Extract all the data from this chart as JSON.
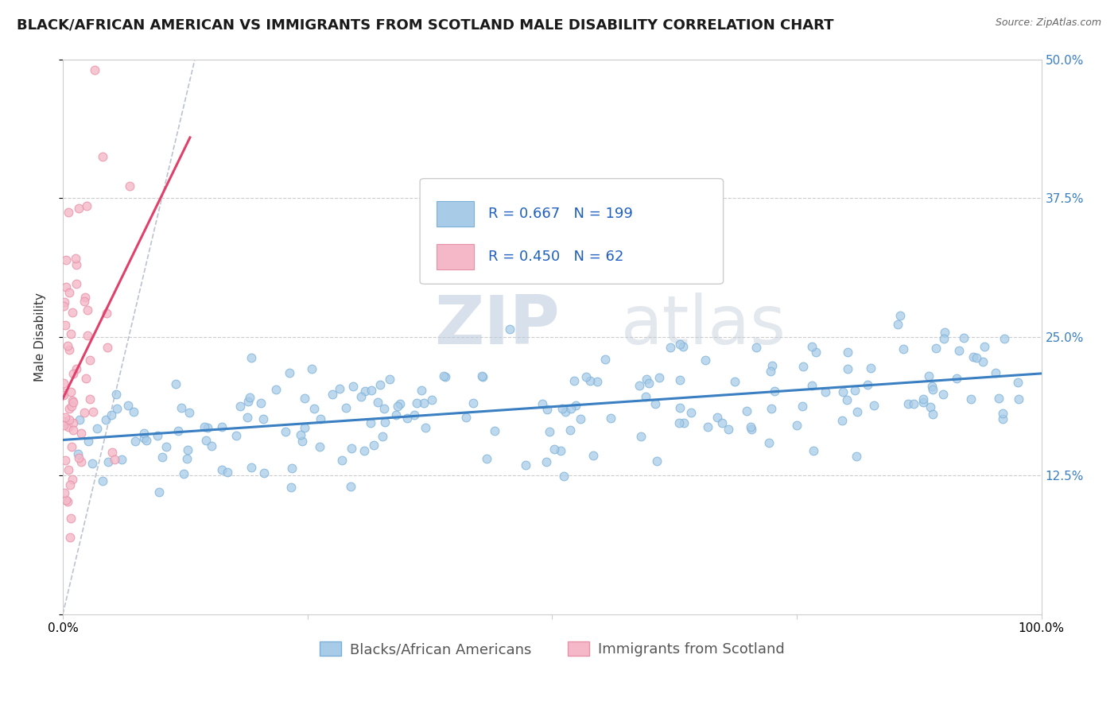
{
  "title": "BLACK/AFRICAN AMERICAN VS IMMIGRANTS FROM SCOTLAND MALE DISABILITY CORRELATION CHART",
  "source": "Source: ZipAtlas.com",
  "ylabel": "Male Disability",
  "watermark_zip": "ZIP",
  "watermark_atlas": "atlas",
  "series": [
    {
      "name": "Blacks/African Americans",
      "R": 0.667,
      "N": 199,
      "marker_color": "#a8cce8",
      "marker_edge": "#7ab0d8",
      "line_color": "#3a7fc1"
    },
    {
      "name": "Immigrants from Scotland",
      "R": 0.45,
      "N": 62,
      "marker_color": "#f4b8c8",
      "marker_edge": "#e890a8",
      "line_color": "#e0406a"
    }
  ],
  "xlim": [
    0,
    1
  ],
  "ylim": [
    0,
    0.5
  ],
  "ytick_vals": [
    0.0,
    0.125,
    0.25,
    0.375,
    0.5
  ],
  "ytick_labels": [
    "",
    "12.5%",
    "25.0%",
    "37.5%",
    "50.0%"
  ],
  "xtick_vals": [
    0.0,
    0.25,
    0.5,
    0.75,
    1.0
  ],
  "xtick_labels": [
    "0.0%",
    "",
    "",
    "",
    "100.0%"
  ],
  "background_color": "#ffffff",
  "grid_color": "#cccccc",
  "title_fontsize": 13,
  "axis_fontsize": 11,
  "tick_fontsize": 11,
  "legend_fontsize": 13
}
